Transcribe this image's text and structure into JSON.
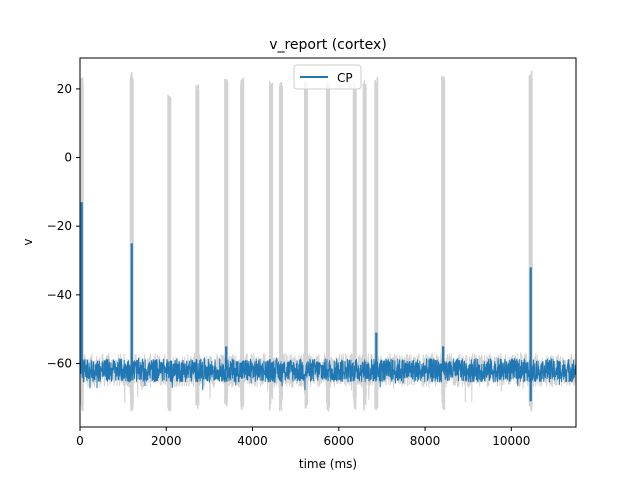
{
  "chart_data": {
    "type": "line",
    "title": "v_report (cortex)",
    "xlabel": "time (ms)",
    "ylabel": "v",
    "xlim": [
      0,
      11500
    ],
    "ylim": [
      -78.5,
      29
    ],
    "x_ticks": [
      0,
      2000,
      4000,
      6000,
      8000,
      10000
    ],
    "x_tick_labels": [
      "0",
      "2000",
      "4000",
      "6000",
      "8000",
      "10000"
    ],
    "y_ticks": [
      20,
      0,
      -20,
      -40,
      -60
    ],
    "y_tick_labels": [
      "20",
      "0",
      "−20",
      "−40",
      "−60"
    ],
    "grid": false,
    "legend": {
      "position": "top-center",
      "entries": [
        "CP"
      ]
    },
    "background_trace": {
      "color": "#d3d3d3",
      "baseline": -62,
      "noise_amplitude": 5,
      "spike_times": [
        40,
        1200,
        2070,
        2720,
        3390,
        3760,
        4430,
        4660,
        5240,
        5750,
        6370,
        6600,
        6870,
        8420,
        10450
      ],
      "spike_peaks": [
        22,
        24,
        17,
        20,
        22,
        22,
        21,
        21,
        21,
        21,
        21,
        21,
        22,
        23,
        24
      ]
    },
    "series": [
      {
        "name": "CP",
        "color": "#1f77b4",
        "baseline": -62,
        "noise_amplitude": 3.5,
        "events": [
          {
            "time": 40,
            "peak": -13
          },
          {
            "time": 1200,
            "peak": -25
          },
          {
            "time": 3390,
            "peak": -55
          },
          {
            "time": 6870,
            "peak": -51
          },
          {
            "time": 8420,
            "peak": -55
          },
          {
            "time": 10450,
            "peak": -32
          }
        ],
        "min_dip": {
          "time": 10450,
          "value": -71
        }
      }
    ]
  }
}
